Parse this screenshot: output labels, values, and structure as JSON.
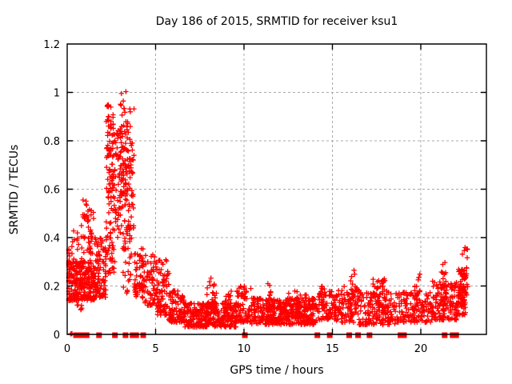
{
  "chart_data": {
    "type": "scatter",
    "title": "Day 186 of 2015, SRMTID for receiver ksu1",
    "xlabel": "GPS time / hours",
    "ylabel": "SRMTID / TECUs",
    "xlim": [
      0,
      23.71
    ],
    "ylim": [
      0,
      1.2
    ],
    "xticks": [
      0,
      5,
      10,
      15,
      20
    ],
    "xtick_labels": [
      "0",
      "5",
      "10",
      "15",
      "20"
    ],
    "yticks": [
      0,
      0.2,
      0.4,
      0.6,
      0.8,
      1.0,
      1.2
    ],
    "ytick_labels": [
      "0",
      "0.2",
      "0.4",
      "0.6",
      "0.8",
      "1",
      "1.2"
    ],
    "grid": "dashed",
    "legend": "none",
    "marker": "plus",
    "marker_color": "#ff0000",
    "gap_marker": "filled-square",
    "gap_marker_color": "#ff0000",
    "grid_color": "#a8a8a8",
    "frame_color": "#000000",
    "background_color": "#ffffff",
    "series_note": "clusters encode the scatter cloud as [hourStart, hourEnd, yMin, yMax, nPoints, lowBiasExponent]",
    "clusters": [
      [
        0.0,
        0.15,
        0.2,
        0.36,
        18,
        1.0
      ],
      [
        0.0,
        1.6,
        0.14,
        0.3,
        240,
        1.4
      ],
      [
        0.25,
        1.4,
        0.29,
        0.44,
        34,
        1.2
      ],
      [
        0.8,
        1.25,
        0.44,
        0.56,
        12,
        1.0
      ],
      [
        0.55,
        0.85,
        0.07,
        0.13,
        6,
        1.0
      ],
      [
        1.1,
        1.5,
        0.32,
        0.52,
        22,
        1.0
      ],
      [
        1.55,
        2.2,
        0.15,
        0.4,
        85,
        1.4
      ],
      [
        2.2,
        2.65,
        0.45,
        0.97,
        85,
        0.9
      ],
      [
        2.15,
        2.7,
        0.24,
        0.45,
        38,
        1.0
      ],
      [
        2.65,
        3.1,
        0.4,
        0.86,
        65,
        1.0
      ],
      [
        3.0,
        3.45,
        0.52,
        1.02,
        75,
        1.1
      ],
      [
        3.15,
        3.65,
        0.17,
        0.48,
        40,
        1.2
      ],
      [
        3.45,
        3.8,
        0.42,
        0.95,
        48,
        1.0
      ],
      [
        3.8,
        4.4,
        0.15,
        0.36,
        65,
        1.3
      ],
      [
        4.4,
        5.1,
        0.12,
        0.33,
        65,
        1.4
      ],
      [
        5.1,
        5.75,
        0.08,
        0.31,
        75,
        1.5
      ],
      [
        5.75,
        6.6,
        0.05,
        0.18,
        100,
        1.5
      ],
      [
        6.6,
        9.6,
        0.03,
        0.13,
        330,
        1.3
      ],
      [
        7.9,
        8.45,
        0.09,
        0.26,
        40,
        1.6
      ],
      [
        8.9,
        9.3,
        0.07,
        0.18,
        22,
        1.4
      ],
      [
        9.6,
        10.4,
        0.05,
        0.2,
        75,
        1.6
      ],
      [
        10.4,
        14.2,
        0.04,
        0.15,
        400,
        1.2
      ],
      [
        11.3,
        11.55,
        0.09,
        0.22,
        14,
        1.2
      ],
      [
        12.3,
        13.6,
        0.07,
        0.18,
        60,
        1.4
      ],
      [
        14.2,
        15.2,
        0.06,
        0.18,
        85,
        1.3
      ],
      [
        14.35,
        14.55,
        0.1,
        0.22,
        12,
        1.0
      ],
      [
        15.2,
        16.5,
        0.05,
        0.2,
        100,
        1.4
      ],
      [
        16.0,
        16.3,
        0.11,
        0.27,
        14,
        1.0
      ],
      [
        16.5,
        18.6,
        0.04,
        0.18,
        160,
        1.3
      ],
      [
        17.3,
        18.05,
        0.09,
        0.23,
        40,
        1.3
      ],
      [
        18.6,
        20.6,
        0.05,
        0.18,
        140,
        1.3
      ],
      [
        19.6,
        19.95,
        0.1,
        0.26,
        16,
        1.1
      ],
      [
        20.6,
        22.1,
        0.06,
        0.22,
        150,
        1.4
      ],
      [
        21.15,
        21.45,
        0.11,
        0.3,
        18,
        1.1
      ],
      [
        22.05,
        22.55,
        0.08,
        0.28,
        80,
        1.2
      ],
      [
        22.35,
        22.65,
        0.13,
        0.34,
        30,
        1.0
      ],
      [
        22.45,
        22.65,
        0.33,
        0.4,
        5,
        1.0
      ],
      [
        0.15,
        0.28,
        0.0,
        0.005,
        3,
        1.0
      ]
    ],
    "zero_gap_marker_hours": [
      0.5,
      0.6,
      0.9,
      1.1,
      1.8,
      2.7,
      3.3,
      3.7,
      3.9,
      4.3,
      10.05,
      14.15,
      14.85,
      15.95,
      16.45,
      17.1,
      18.85,
      19.05,
      21.35,
      21.8,
      22.0
    ]
  }
}
